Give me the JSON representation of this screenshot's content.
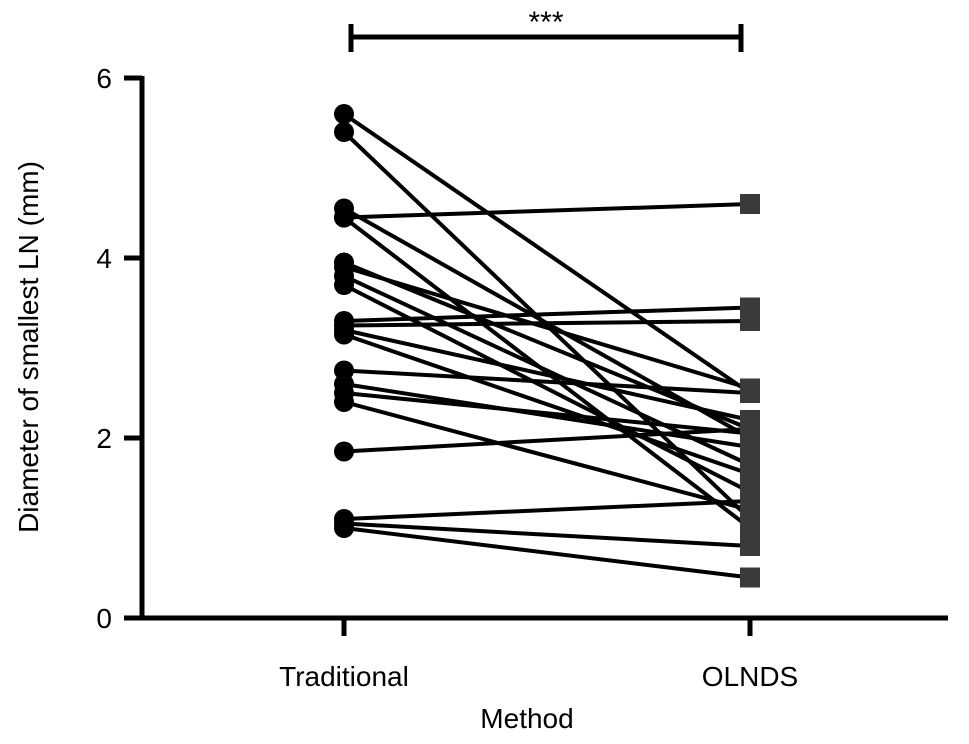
{
  "chart_data": {
    "type": "scatter",
    "xlabel": "Method",
    "ylabel": "Diameter of smallest LN (mm)",
    "categories": [
      "Traditional",
      "OLNDS"
    ],
    "ylim": [
      0,
      6
    ],
    "yticks": [
      "0",
      "2",
      "4",
      "6"
    ],
    "grid": false,
    "significance": {
      "label": "***",
      "between": [
        "Traditional",
        "OLNDS"
      ]
    },
    "marker_shapes": {
      "Traditional": "circle",
      "OLNDS": "square"
    },
    "pairs": [
      {
        "traditional": 5.6,
        "olnds": 2.5
      },
      {
        "traditional": 5.4,
        "olnds": 1.1
      },
      {
        "traditional": 4.55,
        "olnds": 2.0
      },
      {
        "traditional": 4.45,
        "olnds": 4.6
      },
      {
        "traditional": 4.45,
        "olnds": 1.0
      },
      {
        "traditional": 3.95,
        "olnds": 2.1
      },
      {
        "traditional": 3.9,
        "olnds": 2.55
      },
      {
        "traditional": 3.8,
        "olnds": 1.7
      },
      {
        "traditional": 3.7,
        "olnds": 1.4
      },
      {
        "traditional": 3.3,
        "olnds": 3.45
      },
      {
        "traditional": 3.25,
        "olnds": 3.3
      },
      {
        "traditional": 3.2,
        "olnds": 2.2
      },
      {
        "traditional": 3.15,
        "olnds": 1.6
      },
      {
        "traditional": 2.75,
        "olnds": 2.5
      },
      {
        "traditional": 2.6,
        "olnds": 1.9
      },
      {
        "traditional": 2.5,
        "olnds": 2.05
      },
      {
        "traditional": 2.4,
        "olnds": 1.2
      },
      {
        "traditional": 1.85,
        "olnds": 2.1
      },
      {
        "traditional": 1.1,
        "olnds": 1.3
      },
      {
        "traditional": 1.05,
        "olnds": 0.8
      },
      {
        "traditional": 1.0,
        "olnds": 0.45
      }
    ]
  }
}
